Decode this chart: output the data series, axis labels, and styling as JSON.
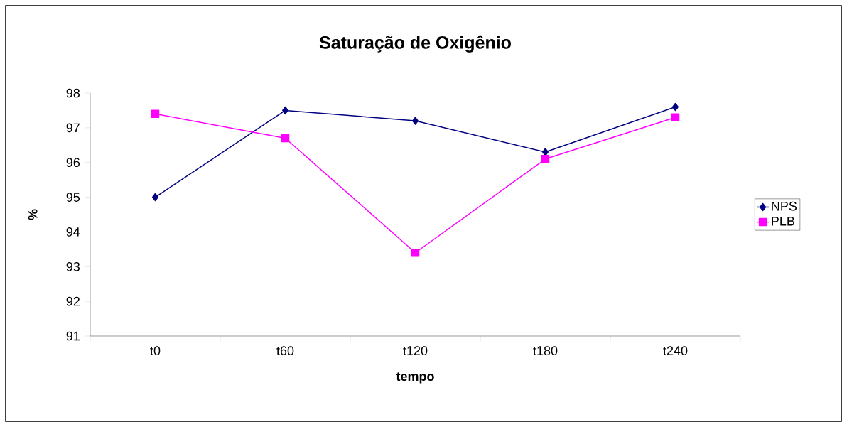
{
  "chart_data": {
    "type": "line",
    "title": "Saturação de Oxigênio",
    "xlabel": "tempo",
    "ylabel": "%",
    "categories": [
      "t0",
      "t60",
      "t120",
      "t180",
      "t240"
    ],
    "series": [
      {
        "name": "NPS",
        "color": "#000080",
        "marker": "diamond",
        "values": [
          95.0,
          97.5,
          97.2,
          96.3,
          97.6
        ]
      },
      {
        "name": "PLB",
        "color": "#ff00ff",
        "marker": "square",
        "values": [
          97.4,
          96.7,
          93.4,
          96.1,
          97.3
        ]
      }
    ],
    "ylim": [
      91,
      98
    ],
    "yticks": [
      91,
      92,
      93,
      94,
      95,
      96,
      97,
      98
    ],
    "grid": false,
    "legend": "right",
    "line_style": "solid"
  }
}
